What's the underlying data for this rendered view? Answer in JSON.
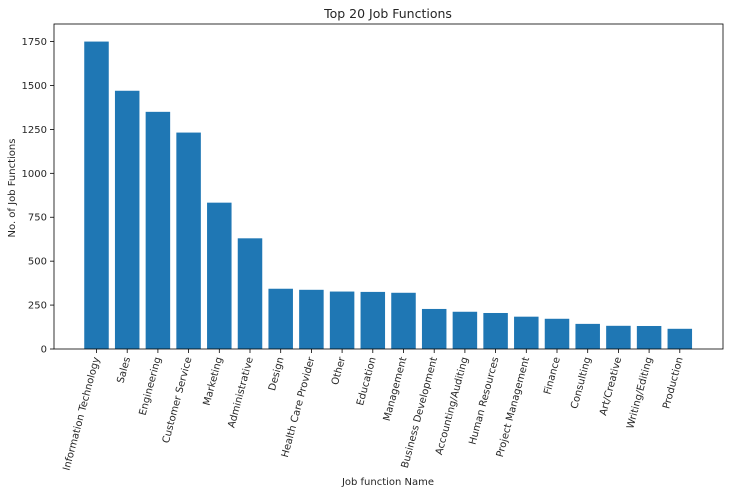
{
  "chart_data": {
    "type": "bar",
    "title": "Top 20 Job Functions",
    "xlabel": "Job function Name",
    "ylabel": "No. of Job Functions",
    "ylim": [
      0,
      1850
    ],
    "yticks": [
      0,
      250,
      500,
      750,
      1000,
      1250,
      1500,
      1750
    ],
    "grid": false,
    "bar_color": "#1f77b4",
    "categories": [
      "Information Technology",
      "Sales",
      "Engineering",
      "Customer Service",
      "Marketing",
      "Administrative",
      "Design",
      "Health Care Provider",
      "Other",
      "Education",
      "Management",
      "Business Development",
      "Accounting/Auditing",
      "Human Resources",
      "Project Management",
      "Finance",
      "Consulting",
      "Art/Creative",
      "Writing/Editing",
      "Production"
    ],
    "values": [
      1750,
      1470,
      1350,
      1232,
      833,
      630,
      343,
      337,
      327,
      325,
      320,
      228,
      212,
      205,
      184,
      172,
      143,
      132,
      131,
      115
    ]
  }
}
